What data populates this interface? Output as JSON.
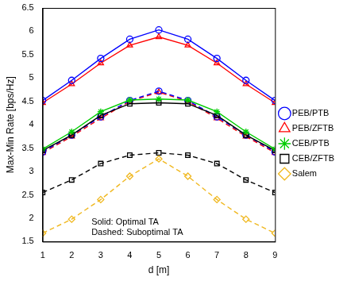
{
  "chart_data": {
    "type": "line",
    "x_label": "d [m]",
    "y_label": "Max-Min Rate [bps/Hz]",
    "annotations": [
      "Solid: Optimal TA",
      "Dashed: Suboptimal TA"
    ],
    "x": [
      1,
      2,
      3,
      4,
      5,
      6,
      7,
      8,
      9
    ],
    "xlim": [
      1,
      9
    ],
    "xticks": [
      1,
      2,
      3,
      4,
      5,
      6,
      7,
      8,
      9
    ],
    "ylim": [
      1.5,
      6.5
    ],
    "yticks": [
      1.5,
      2,
      2.5,
      3,
      3.5,
      4,
      4.5,
      5,
      5.5,
      6,
      6.5
    ],
    "grid": false,
    "legend": "right",
    "series": [
      {
        "name": "PEB/PTB",
        "color": "#0000ff",
        "marker": "circle",
        "line_style": "solid",
        "values": [
          4.52,
          4.95,
          5.42,
          5.83,
          6.03,
          5.83,
          5.42,
          4.95,
          4.52
        ]
      },
      {
        "name": "PEB/ZFTB",
        "color": "#ff0000",
        "marker": "triangle",
        "line_style": "solid",
        "values": [
          4.47,
          4.87,
          5.32,
          5.7,
          5.88,
          5.7,
          5.32,
          4.87,
          4.47
        ]
      },
      {
        "name": "CEB/PTB",
        "color": "#00cc00",
        "marker": "star",
        "line_style": "solid",
        "values": [
          3.48,
          3.85,
          4.28,
          4.53,
          4.55,
          4.53,
          4.28,
          3.85,
          3.48
        ]
      },
      {
        "name": "CEB/ZFTB",
        "color": "#000000",
        "marker": "square",
        "line_style": "solid",
        "values": [
          3.45,
          3.78,
          4.2,
          4.45,
          4.47,
          4.45,
          4.2,
          3.78,
          3.45
        ]
      },
      {
        "name": "Salem",
        "color": "#f0b820",
        "marker": "diamond",
        "line_style": "dashed",
        "values": [
          1.68,
          1.98,
          2.4,
          2.9,
          3.27,
          2.9,
          2.4,
          1.98,
          1.68
        ]
      },
      {
        "color": "#0000ff",
        "marker": "circle",
        "line_style": "dashed",
        "values": [
          3.42,
          3.78,
          4.17,
          4.52,
          4.72,
          4.52,
          4.17,
          3.78,
          3.42
        ]
      },
      {
        "color": "#ff0000",
        "marker": "triangle",
        "line_style": "dashed",
        "values": [
          3.4,
          3.75,
          4.14,
          4.5,
          4.7,
          4.5,
          4.14,
          3.75,
          3.4
        ]
      },
      {
        "color": "#000000",
        "marker": "square",
        "line_style": "dashed",
        "values": [
          2.55,
          2.82,
          3.17,
          3.35,
          3.4,
          3.35,
          3.17,
          2.82,
          2.55
        ]
      }
    ]
  }
}
